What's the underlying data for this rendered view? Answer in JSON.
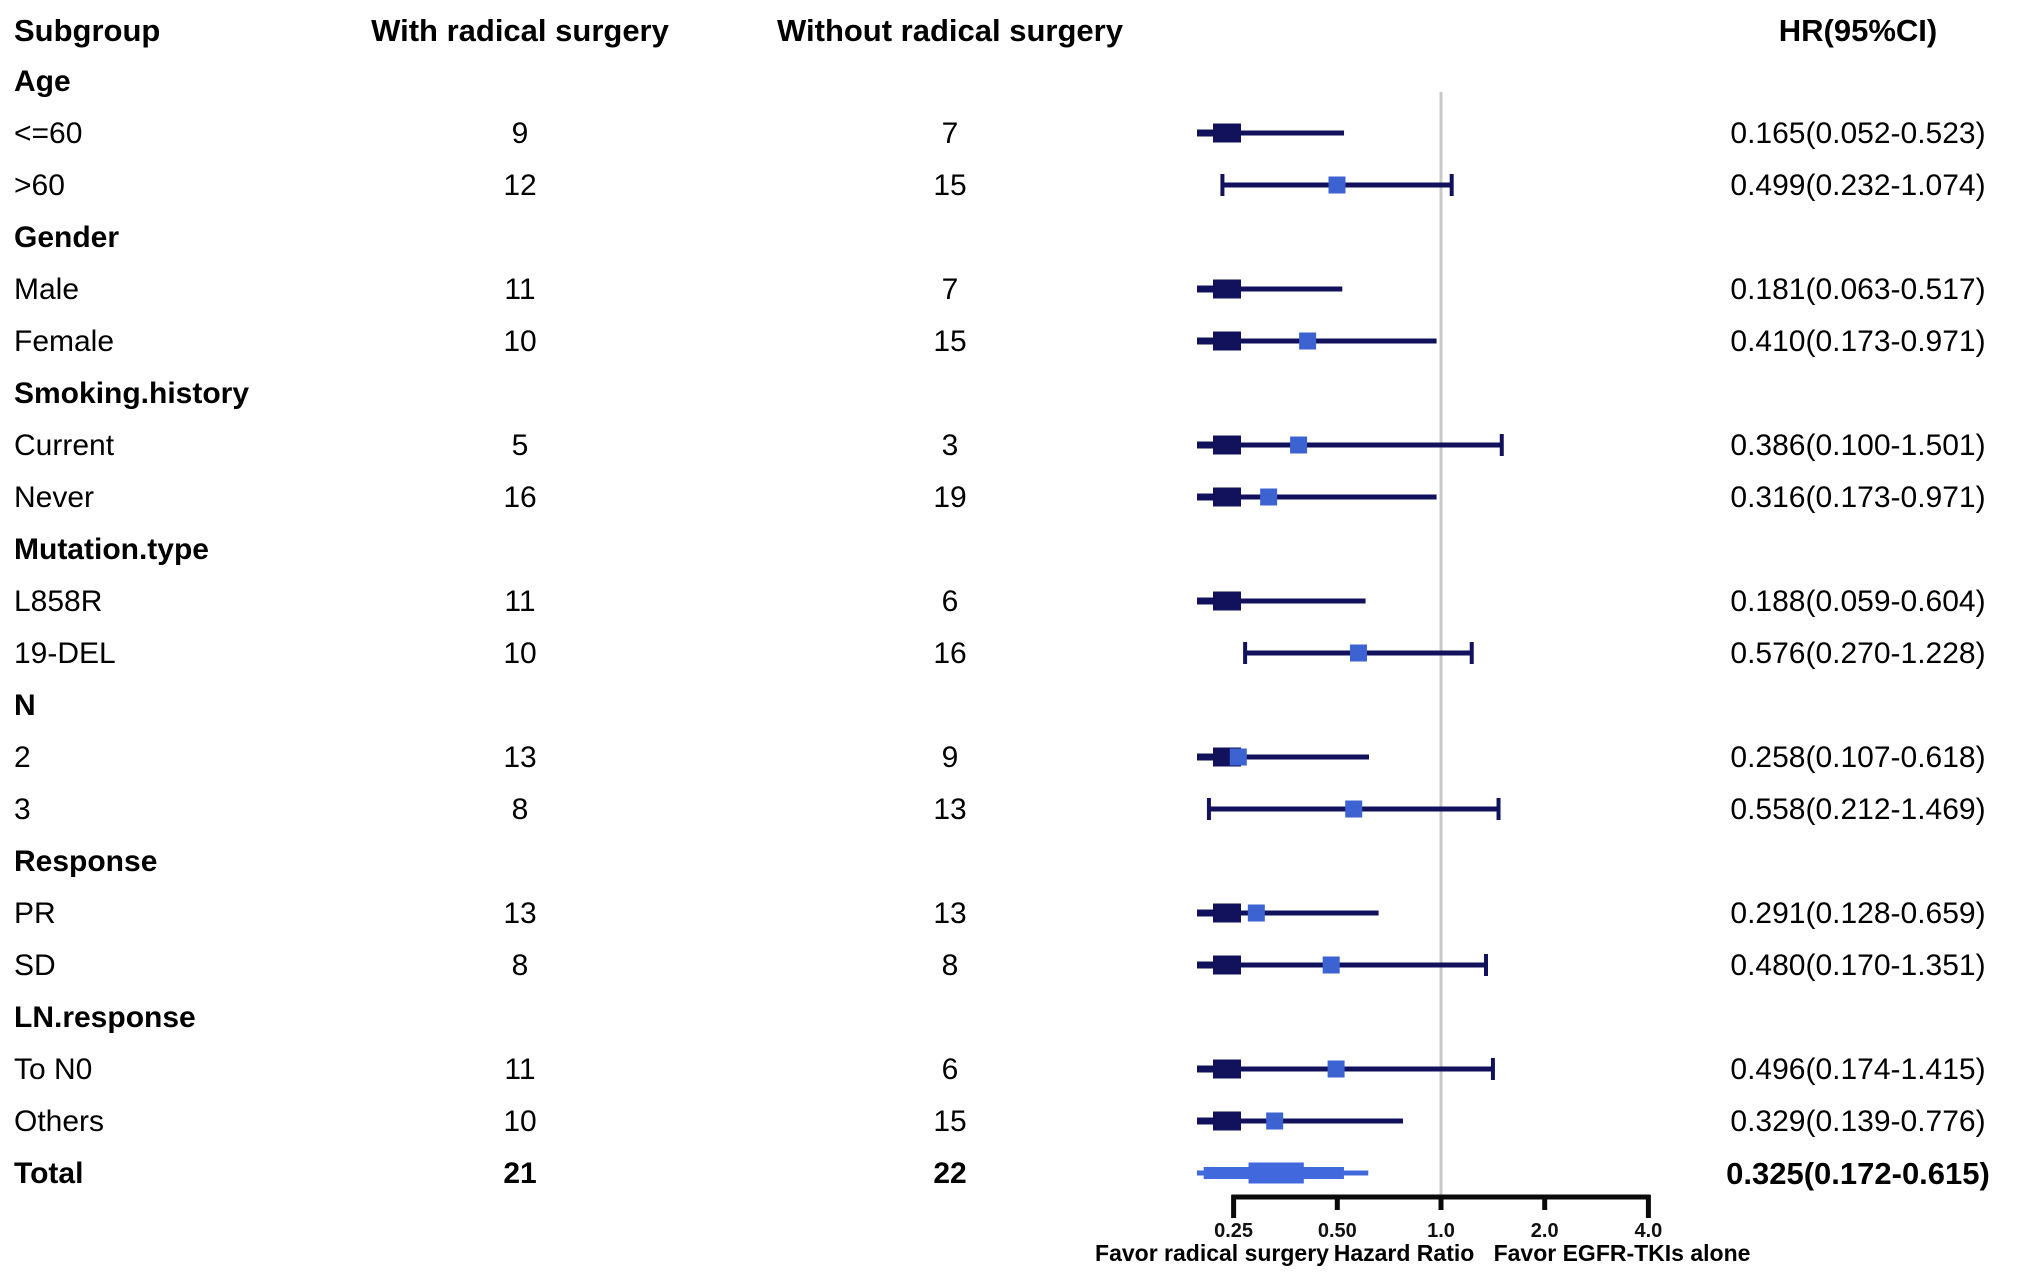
{
  "header": {
    "subgroup": "Subgroup",
    "with": "With radical surgery",
    "without": "Without radical surgery",
    "hr": "HR(95%CI)"
  },
  "colors": {
    "ci_line": "#12125c",
    "marker": "#3d63d2",
    "summary_bar": "#4169dd",
    "ref_line": "#c8c8c8",
    "axis": "#0a0a0a"
  },
  "chart_data": {
    "type": "forest",
    "x_scale": "log",
    "x_ticks": [
      0.25,
      0.5,
      1.0,
      2.0,
      4.0
    ],
    "x_tick_labels": [
      "0.25",
      "0.50",
      "1.0",
      "2.0",
      "4.0"
    ],
    "ref_line": 1.0,
    "xlabel": "Hazard Ratio",
    "favor_left": "Favor radical surgery",
    "favor_right": "Favor EGFR-TKIs alone",
    "groups": [
      {
        "section": "Age",
        "rows": [
          {
            "subgroup": "<=60",
            "with_n": "9",
            "without_n": "7",
            "hr": 0.165,
            "ci_low": 0.052,
            "ci_high": 0.523,
            "hr_ci": "0.165(0.052-0.523)"
          },
          {
            "subgroup": ">60",
            "with_n": "12",
            "without_n": "15",
            "hr": 0.499,
            "ci_low": 0.232,
            "ci_high": 1.074,
            "hr_ci": "0.499(0.232-1.074)"
          }
        ]
      },
      {
        "section": "Gender",
        "rows": [
          {
            "subgroup": "Male",
            "with_n": "11",
            "without_n": "7",
            "hr": 0.181,
            "ci_low": 0.063,
            "ci_high": 0.517,
            "hr_ci": "0.181(0.063-0.517)"
          },
          {
            "subgroup": "Female",
            "with_n": "10",
            "without_n": "15",
            "hr": 0.41,
            "ci_low": 0.173,
            "ci_high": 0.971,
            "hr_ci": "0.410(0.173-0.971)"
          }
        ]
      },
      {
        "section": "Smoking.history",
        "rows": [
          {
            "subgroup": "Current",
            "with_n": "5",
            "without_n": "3",
            "hr": 0.386,
            "ci_low": 0.1,
            "ci_high": 1.501,
            "hr_ci": "0.386(0.100-1.501)"
          },
          {
            "subgroup": "Never",
            "with_n": "16",
            "without_n": "19",
            "hr": 0.316,
            "ci_low": 0.173,
            "ci_high": 0.971,
            "hr_ci": "0.316(0.173-0.971)"
          }
        ]
      },
      {
        "section": "Mutation.type",
        "rows": [
          {
            "subgroup": "L858R",
            "with_n": "11",
            "without_n": "6",
            "hr": 0.188,
            "ci_low": 0.059,
            "ci_high": 0.604,
            "hr_ci": "0.188(0.059-0.604)"
          },
          {
            "subgroup": "19-DEL",
            "with_n": "10",
            "without_n": "16",
            "hr": 0.576,
            "ci_low": 0.27,
            "ci_high": 1.228,
            "hr_ci": "0.576(0.270-1.228)"
          }
        ]
      },
      {
        "section": "N",
        "rows": [
          {
            "subgroup": "2",
            "with_n": "13",
            "without_n": "9",
            "hr": 0.258,
            "ci_low": 0.107,
            "ci_high": 0.618,
            "hr_ci": "0.258(0.107-0.618)"
          },
          {
            "subgroup": "3",
            "with_n": "8",
            "without_n": "13",
            "hr": 0.558,
            "ci_low": 0.212,
            "ci_high": 1.469,
            "hr_ci": "0.558(0.212-1.469)"
          }
        ]
      },
      {
        "section": "Response",
        "rows": [
          {
            "subgroup": "PR",
            "with_n": "13",
            "without_n": "13",
            "hr": 0.291,
            "ci_low": 0.128,
            "ci_high": 0.659,
            "hr_ci": "0.291(0.128-0.659)"
          },
          {
            "subgroup": "SD",
            "with_n": "8",
            "without_n": "8",
            "hr": 0.48,
            "ci_low": 0.17,
            "ci_high": 1.351,
            "hr_ci": "0.480(0.170-1.351)"
          }
        ]
      },
      {
        "section": "LN.response",
        "rows": [
          {
            "subgroup": "To N0",
            "with_n": "11",
            "without_n": "6",
            "hr": 0.496,
            "ci_low": 0.174,
            "ci_high": 1.415,
            "hr_ci": "0.496(0.174-1.415)"
          },
          {
            "subgroup": "Others",
            "with_n": "10",
            "without_n": "15",
            "hr": 0.329,
            "ci_low": 0.139,
            "ci_high": 0.776,
            "hr_ci": "0.329(0.139-0.776)"
          }
        ]
      }
    ],
    "total": {
      "subgroup": "Total",
      "with_n": "21",
      "without_n": "22",
      "hr": 0.325,
      "ci_low": 0.172,
      "ci_high": 0.615,
      "hr_ci": "0.325(0.172-0.615)"
    }
  }
}
